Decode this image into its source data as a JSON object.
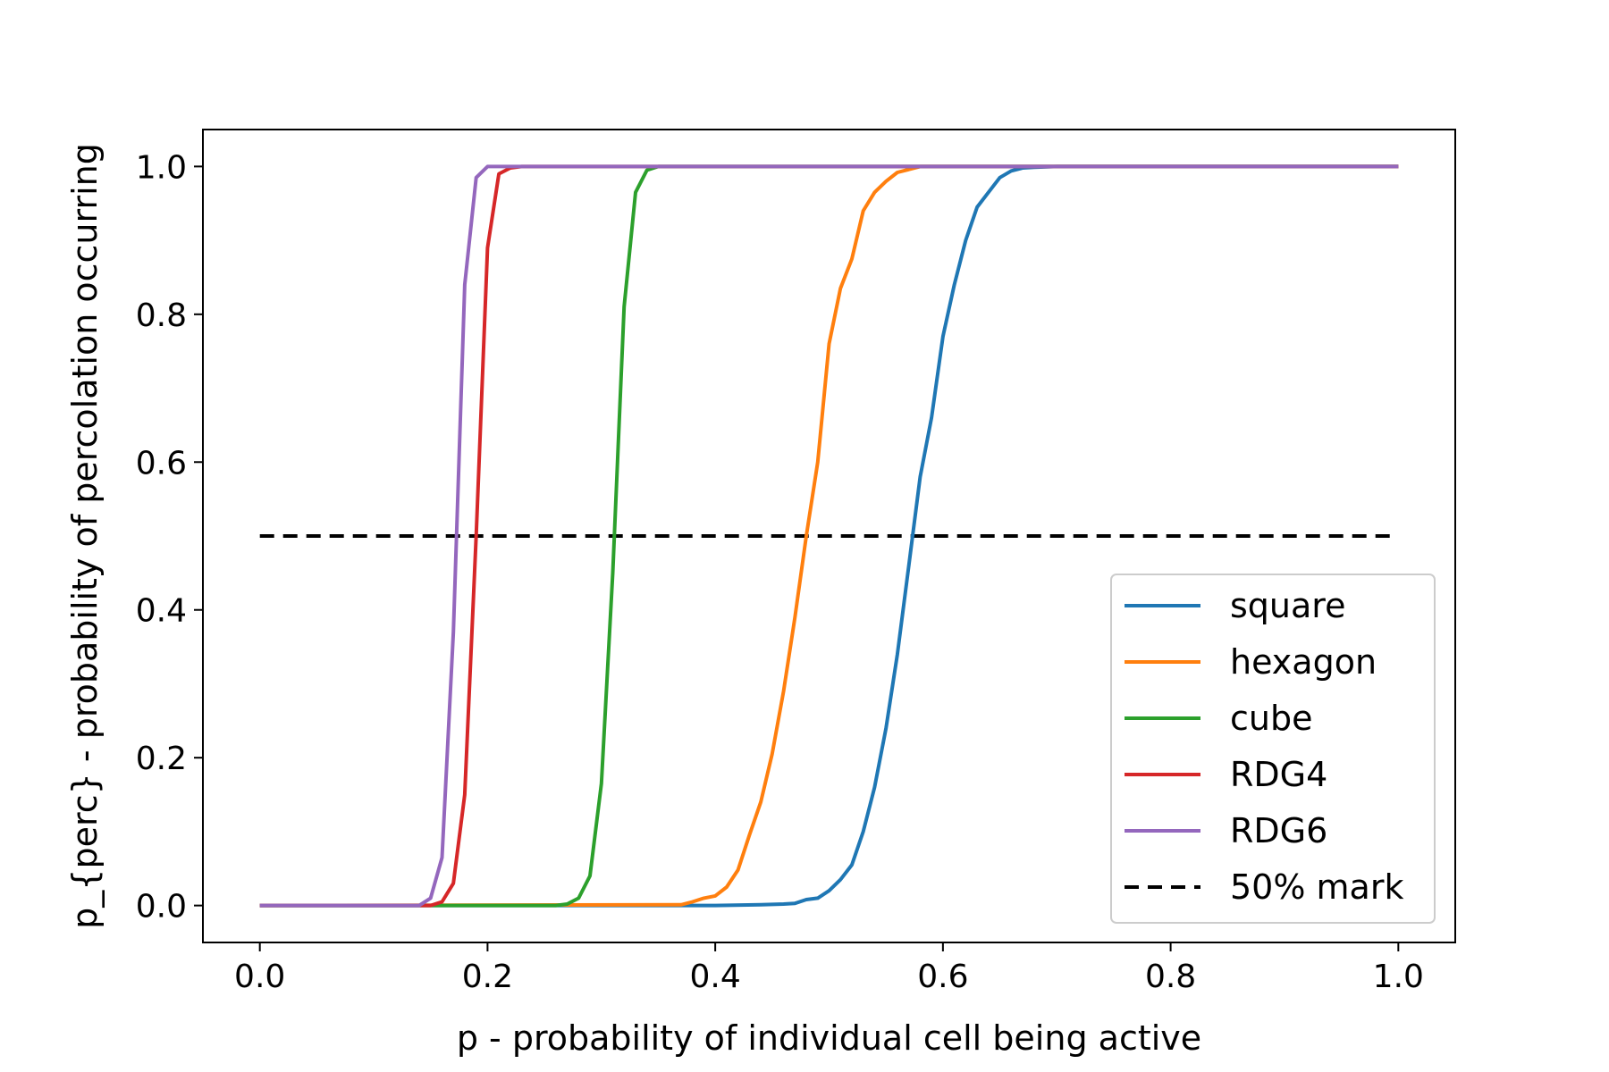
{
  "chart_data": {
    "type": "line",
    "xlabel": "p - probability of individual cell being active",
    "ylabel": "p_{perc} - probability of percolation occurring",
    "xlim": [
      -0.05,
      1.05
    ],
    "ylim": [
      -0.05,
      1.05
    ],
    "x_ticks": [
      0.0,
      0.2,
      0.4,
      0.6,
      0.8,
      1.0
    ],
    "x_tick_labels": [
      "0.0",
      "0.2",
      "0.4",
      "0.6",
      "0.8",
      "1.0"
    ],
    "y_ticks": [
      0.0,
      0.2,
      0.4,
      0.6,
      0.8,
      1.0
    ],
    "y_tick_labels": [
      "0.0",
      "0.2",
      "0.4",
      "0.6",
      "0.8",
      "1.0"
    ],
    "grid": false,
    "legend_position": "lower-right",
    "series": [
      {
        "name": "square",
        "color": "#1f77b4",
        "style": "solid",
        "x": [
          0.0,
          0.4,
          0.44,
          0.46,
          0.47,
          0.48,
          0.49,
          0.5,
          0.51,
          0.52,
          0.53,
          0.54,
          0.55,
          0.56,
          0.57,
          0.58,
          0.59,
          0.6,
          0.61,
          0.62,
          0.63,
          0.64,
          0.65,
          0.66,
          0.67,
          0.68,
          0.7,
          0.72,
          1.0
        ],
        "y": [
          0.0,
          0.0,
          0.001,
          0.002,
          0.003,
          0.008,
          0.01,
          0.02,
          0.035,
          0.055,
          0.1,
          0.16,
          0.24,
          0.34,
          0.46,
          0.58,
          0.66,
          0.77,
          0.84,
          0.9,
          0.945,
          0.965,
          0.985,
          0.994,
          0.998,
          0.999,
          1.0,
          1.0,
          1.0
        ]
      },
      {
        "name": "hexagon",
        "color": "#ff7f0e",
        "style": "solid",
        "x": [
          0.0,
          0.37,
          0.38,
          0.39,
          0.4,
          0.41,
          0.42,
          0.43,
          0.44,
          0.45,
          0.46,
          0.47,
          0.48,
          0.49,
          0.5,
          0.51,
          0.52,
          0.53,
          0.54,
          0.55,
          0.56,
          0.57,
          0.58,
          0.59,
          0.6,
          1.0
        ],
        "y": [
          0.0,
          0.001,
          0.005,
          0.01,
          0.013,
          0.025,
          0.048,
          0.095,
          0.14,
          0.205,
          0.29,
          0.39,
          0.5,
          0.6,
          0.76,
          0.835,
          0.875,
          0.94,
          0.965,
          0.98,
          0.992,
          0.996,
          1.0,
          1.0,
          1.0,
          1.0
        ]
      },
      {
        "name": "cube",
        "color": "#2ca02c",
        "style": "solid",
        "x": [
          0.0,
          0.26,
          0.27,
          0.28,
          0.29,
          0.3,
          0.31,
          0.32,
          0.33,
          0.34,
          0.35,
          1.0
        ],
        "y": [
          0.0,
          0.0,
          0.002,
          0.01,
          0.04,
          0.165,
          0.45,
          0.81,
          0.965,
          0.995,
          1.0,
          1.0
        ]
      },
      {
        "name": "RDG4",
        "color": "#d62728",
        "style": "solid",
        "x": [
          0.0,
          0.15,
          0.16,
          0.17,
          0.18,
          0.19,
          0.2,
          0.21,
          0.22,
          0.23,
          1.0
        ],
        "y": [
          0.0,
          0.0,
          0.005,
          0.03,
          0.15,
          0.5,
          0.89,
          0.99,
          0.998,
          1.0,
          1.0
        ]
      },
      {
        "name": "RDG6",
        "color": "#9467bd",
        "style": "solid",
        "x": [
          0.0,
          0.14,
          0.15,
          0.16,
          0.17,
          0.18,
          0.19,
          0.2,
          0.21,
          1.0
        ],
        "y": [
          0.0,
          0.0,
          0.01,
          0.065,
          0.37,
          0.84,
          0.985,
          1.0,
          1.0,
          1.0
        ]
      },
      {
        "name": "50% mark",
        "color": "#000000",
        "style": "dashed",
        "x": [
          0.0,
          1.0
        ],
        "y": [
          0.5,
          0.5
        ]
      }
    ]
  }
}
